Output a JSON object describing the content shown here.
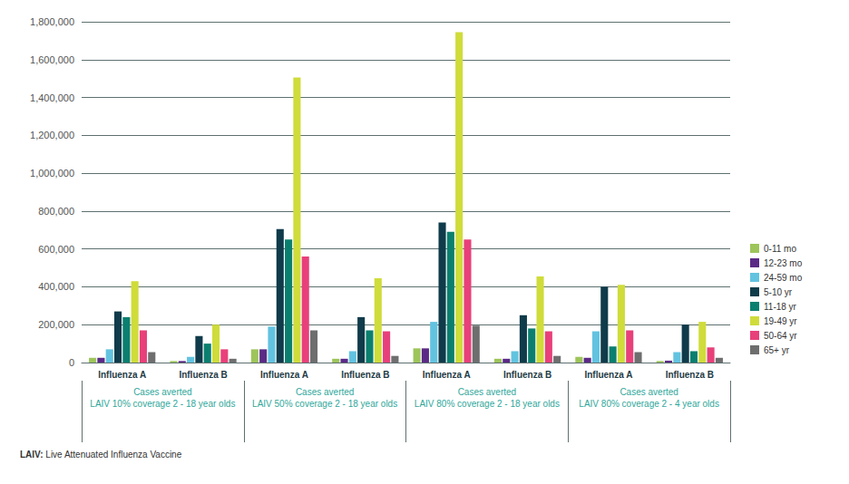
{
  "chart_data": {
    "type": "bar",
    "categories": [
      "Influenza A",
      "Influenza B",
      "Influenza A",
      "Influenza B",
      "Influenza A",
      "Influenza B",
      "Influenza A",
      "Influenza B"
    ],
    "category_groups": [
      "Cases averted\nLAIV 10% coverage 2 - 18 year olds",
      "Cases averted\nLAIV 50% coverage 2 - 18 year olds",
      "Cases averted\nLAIV 80% coverage 2 - 18 year olds",
      "Cases averted\nLAIV 80% coverage 2 - 4 year olds"
    ],
    "series": [
      {
        "name": "0-11 mo",
        "color": "#9dc55a",
        "values": [
          25000,
          8000,
          70000,
          20000,
          75000,
          20000,
          30000,
          8000
        ]
      },
      {
        "name": "12-23 mo",
        "color": "#5b2a86",
        "values": [
          25000,
          8000,
          70000,
          20000,
          75000,
          20000,
          25000,
          10000
        ]
      },
      {
        "name": "24-59 mo",
        "color": "#62c3e0",
        "values": [
          70000,
          30000,
          190000,
          60000,
          215000,
          60000,
          165000,
          55000
        ]
      },
      {
        "name": "5-10 yr",
        "color": "#0f3b4a",
        "values": [
          270000,
          140000,
          705000,
          240000,
          740000,
          250000,
          400000,
          200000
        ]
      },
      {
        "name": "11-18 yr",
        "color": "#0b7f6f",
        "values": [
          240000,
          100000,
          650000,
          170000,
          690000,
          180000,
          85000,
          60000
        ]
      },
      {
        "name": "19-49 yr",
        "color": "#cfdc3a",
        "values": [
          430000,
          200000,
          1505000,
          445000,
          1745000,
          455000,
          410000,
          215000
        ]
      },
      {
        "name": "50-64 yr",
        "color": "#e8407a",
        "values": [
          170000,
          70000,
          560000,
          165000,
          650000,
          165000,
          170000,
          80000
        ]
      },
      {
        "name": "65+ yr",
        "color": "#6e6e6e",
        "values": [
          55000,
          20000,
          170000,
          35000,
          195000,
          35000,
          55000,
          25000
        ]
      }
    ],
    "ylim": [
      0,
      1800000
    ],
    "yticks": [
      0,
      {
        "value": 200000,
        "label": "200,000"
      },
      {
        "value": 400000,
        "label": "400,000"
      },
      {
        "value": 600000,
        "label": "600,000"
      },
      {
        "value": 800000,
        "label": "800,000"
      },
      {
        "value": 1000000,
        "label": "1,000,000"
      },
      {
        "value": 1200000,
        "label": "1,200,000"
      },
      {
        "value": 1400000,
        "label": "1,400,000"
      },
      {
        "value": 1600000,
        "label": "1,600,000"
      },
      {
        "value": 1800000,
        "label": "1,800,000"
      }
    ],
    "grid": true,
    "legend": "right",
    "data_labels": false,
    "footnote": "LAIV: Live Attenuated Influenza Vaccine"
  }
}
